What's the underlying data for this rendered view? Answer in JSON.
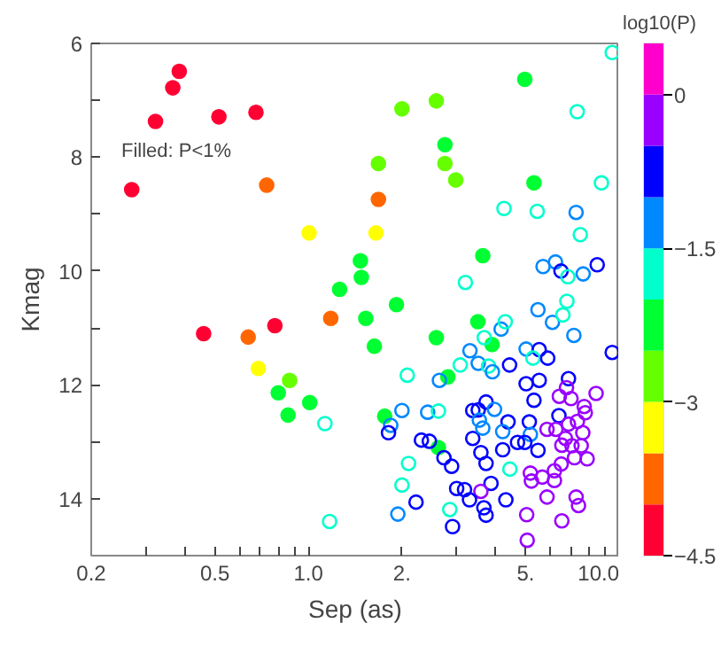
{
  "chart_data": {
    "type": "scatter",
    "xlabel": "Sep (as)",
    "ylabel": "Kmag",
    "clabel": "log10(P)",
    "annotations": [
      "Filled: P<1%"
    ],
    "log": "x",
    "grid": false,
    "xlim": [
      0.2,
      10
    ],
    "ylim": [
      15,
      6
    ],
    "xticks": [
      0.2,
      {
        "value": 0.3,
        "label": null
      },
      {
        "value": 0.4,
        "label": null
      },
      0.5,
      {
        "value": 0.6,
        "label": null
      },
      {
        "value": 0.7,
        "label": null
      },
      {
        "value": 0.8,
        "label": null
      },
      {
        "value": 0.9,
        "label": null
      },
      {
        "value": 1,
        "label": "1.0"
      },
      {
        "value": 2,
        "label": "2."
      },
      {
        "value": 3,
        "label": null
      },
      {
        "value": 4,
        "label": null
      },
      {
        "value": 5,
        "label": "5."
      },
      {
        "value": 6,
        "label": null
      },
      {
        "value": 7,
        "label": null
      },
      {
        "value": 8,
        "label": null
      },
      {
        "value": 9,
        "label": null
      },
      {
        "value": 10,
        "label": "10.0"
      }
    ],
    "yticks": [
      6,
      {
        "value": 7,
        "label": null
      },
      8,
      {
        "value": 9,
        "label": null
      },
      10,
      {
        "value": 11,
        "label": null
      },
      12,
      {
        "value": 13,
        "label": null
      },
      14
    ],
    "clim": [
      -4.5,
      0.5
    ],
    "cticks": [
      0,
      {
        "value": -1.5,
        "label": "−1.5"
      },
      {
        "value": -3,
        "label": "−3"
      },
      {
        "value": -4.5,
        "label": "−4.5"
      }
    ],
    "colors": [
      "#ff0033",
      "#ff6600",
      "#ffff00",
      "#66ff00",
      "#00ff33",
      "#00ffcc",
      "#0088ff",
      "#0000ff",
      "#9900ff",
      "#ff00cc"
    ],
    "series": [
      {
        "marker": "circle",
        "x": [
          0.384,
          0.366,
          0.322,
          0.515,
          0.678,
          0.27,
          0.734,
          1.005,
          1.68,
          1.68,
          1.65,
          1.47,
          1.48,
          1.26,
          4.97,
          2.0,
          2.58,
          2.75,
          2.75,
          2.98,
          5.32,
          3.64,
          0.46,
          0.64,
          0.78,
          1.18,
          1.53,
          1.63,
          0.69,
          0.87,
          0.8,
          0.86,
          1.01,
          1.76,
          1.92,
          2.58,
          3.51,
          3.9,
          2.81,
          2.62
        ],
        "colors": [
          "#ff0033",
          "#ff0033",
          "#ff0033",
          "#ff0033",
          "#ff0033",
          "#ff0033",
          "#ff6600",
          "#ffff00",
          "#66ff00",
          "#ff6600",
          "#ffff00",
          "#00ff33",
          "#00ff33",
          "#00ff33",
          "#00ff33",
          "#66ff00",
          "#66ff00",
          "#00ff33",
          "#66ff00",
          "#66ff00",
          "#00ff33",
          "#00ff33",
          "#ff0033",
          "#ff6600",
          "#ff0033",
          "#ff6600",
          "#00ff33",
          "#00ff33",
          "#ffff00",
          "#66ff00",
          "#00ff33",
          "#00ff33",
          "#00ff33",
          "#00ff33",
          "#00ff33",
          "#00ff33",
          "#00ff33",
          "#00ff33",
          "#00ff33",
          "#00ff33"
        ],
        "values": [
          6.49,
          6.78,
          7.37,
          7.29,
          7.21,
          8.57,
          8.49,
          9.33,
          8.11,
          8.74,
          9.33,
          9.82,
          10.11,
          10.32,
          6.63,
          7.15,
          7.01,
          7.78,
          8.11,
          8.4,
          8.45,
          9.73,
          11.1,
          11.16,
          10.96,
          10.83,
          10.83,
          11.32,
          11.71,
          11.92,
          12.14,
          12.53,
          12.31,
          12.55,
          10.59,
          11.17,
          10.89,
          11.29,
          11.86,
          13.1
        ]
      },
      {
        "marker": "circle_open",
        "x": [
          9.5,
          7.33,
          8.77,
          4.26,
          5.45,
          7.27,
          7.5,
          3.2,
          5.69,
          6.24,
          6.5,
          6.84,
          7.66,
          8.5,
          9.5,
          6.79,
          5.48,
          6.1,
          6.59,
          7.15,
          4.17,
          4.3,
          3.68,
          5.02,
          5.53,
          5.28,
          5.89,
          3.31,
          3.52,
          3.08,
          3.8,
          3.91,
          4.44,
          2.08,
          2.64,
          5.02,
          5.53,
          6.87,
          6.77,
          6.42,
          7.0,
          8.43,
          5.32,
          3.73,
          3.52,
          3.97,
          7.72,
          7.78,
          6.4,
          7.34,
          6.87,
          5.86,
          6.26,
          7.64,
          4.39,
          5.14,
          5.18,
          3.38,
          2.42,
          2.62,
          2.0,
          1.84,
          1.81,
          3.55,
          4.22,
          2.31,
          2.45,
          3.38,
          3.64,
          4.71,
          4.97,
          5.48,
          6.72,
          7.05,
          6.54,
          7.55,
          7.89,
          7.18,
          6.51,
          6.19,
          5.18,
          5.66,
          6.19,
          5.22,
          3.59,
          3.73,
          4.22,
          4.45,
          2.73,
          2.89,
          2.1,
          3.87,
          3.0,
          3.18,
          3.59,
          4.32,
          5.86,
          7.27,
          7.4,
          3.3,
          3.67,
          3.73,
          5.04,
          6.54,
          2.22,
          2.0,
          1.94,
          2.85,
          2.91,
          5.06,
          1.13,
          1.17
        ],
        "colors": [
          "#00ffcc",
          "#00ffcc",
          "#00ffcc",
          "#00ffcc",
          "#00ffcc",
          "#0088ff",
          "#00ffcc",
          "#00ffcc",
          "#0088ff",
          "#0088ff",
          "#0000ff",
          "#00ffcc",
          "#0088ff",
          "#0000ff",
          "#0000ff",
          "#00ffcc",
          "#0088ff",
          "#0088ff",
          "#00ffcc",
          "#0088ff",
          "#0088ff",
          "#00ffcc",
          "#00ffcc",
          "#0088ff",
          "#0000ff",
          "#00ffcc",
          "#0000ff",
          "#0088ff",
          "#0088ff",
          "#00ffcc",
          "#00ffcc",
          "#0088ff",
          "#0000ff",
          "#00ffcc",
          "#0088ff",
          "#0000ff",
          "#0000ff",
          "#0000ff",
          "#9900ff",
          "#9900ff",
          "#9900ff",
          "#9900ff",
          "#0000ff",
          "#0000ff",
          "#0000ff",
          "#0088ff",
          "#9900ff",
          "#9900ff",
          "#0000ff",
          "#9900ff",
          "#9900ff",
          "#9900ff",
          "#9900ff",
          "#9900ff",
          "#0000ff",
          "#0000ff",
          "#0088ff",
          "#0000ff",
          "#0088ff",
          "#00ffcc",
          "#0088ff",
          "#0088ff",
          "#0000ff",
          "#0088ff",
          "#0088ff",
          "#0000ff",
          "#0000ff",
          "#0000ff",
          "#0088ff",
          "#0000ff",
          "#0000ff",
          "#0000ff",
          "#9900ff",
          "#9900ff",
          "#9900ff",
          "#9900ff",
          "#9900ff",
          "#9900ff",
          "#9900ff",
          "#9900ff",
          "#9900ff",
          "#9900ff",
          "#9900ff",
          "#9900ff",
          "#0000ff",
          "#0000ff",
          "#0000ff",
          "#00ffcc",
          "#0000ff",
          "#0000ff",
          "#00ffcc",
          "#0000ff",
          "#0000ff",
          "#0000ff",
          "#9900ff",
          "#0000ff",
          "#9900ff",
          "#9900ff",
          "#9900ff",
          "#0000ff",
          "#0000ff",
          "#0000ff",
          "#9900ff",
          "#9900ff",
          "#0000ff",
          "#00ffcc",
          "#0088ff",
          "#00ffcc",
          "#0000ff",
          "#9900ff",
          "#00ffcc",
          "#00ffcc"
        ],
        "values": [
          6.16,
          7.2,
          8.45,
          8.9,
          8.95,
          8.97,
          9.36,
          10.2,
          9.92,
          9.84,
          10.0,
          10.1,
          10.05,
          9.89,
          11.43,
          10.53,
          10.68,
          10.9,
          10.77,
          11.13,
          11.02,
          10.89,
          11.17,
          11.37,
          11.38,
          11.53,
          11.53,
          11.4,
          11.62,
          11.65,
          11.67,
          11.77,
          11.65,
          11.83,
          11.92,
          11.98,
          11.92,
          11.89,
          12.05,
          12.2,
          12.24,
          12.15,
          12.27,
          12.3,
          12.44,
          12.43,
          12.38,
          12.49,
          12.54,
          12.64,
          12.69,
          12.78,
          12.78,
          12.84,
          12.65,
          12.65,
          12.87,
          12.45,
          12.48,
          12.46,
          12.45,
          12.71,
          12.84,
          12.62,
          12.82,
          12.97,
          12.99,
          12.94,
          12.76,
          13.01,
          13.01,
          13.15,
          12.94,
          13.07,
          13.06,
          13.07,
          13.3,
          13.28,
          13.39,
          13.51,
          13.55,
          13.62,
          13.68,
          13.69,
          13.19,
          13.38,
          13.14,
          13.48,
          13.28,
          13.43,
          13.38,
          13.73,
          13.82,
          13.84,
          13.87,
          14.02,
          13.97,
          13.97,
          14.12,
          14.02,
          14.16,
          14.29,
          14.28,
          14.39,
          14.06,
          13.76,
          14.27,
          14.19,
          14.49,
          14.73,
          12.68,
          14.4
        ]
      }
    ]
  }
}
